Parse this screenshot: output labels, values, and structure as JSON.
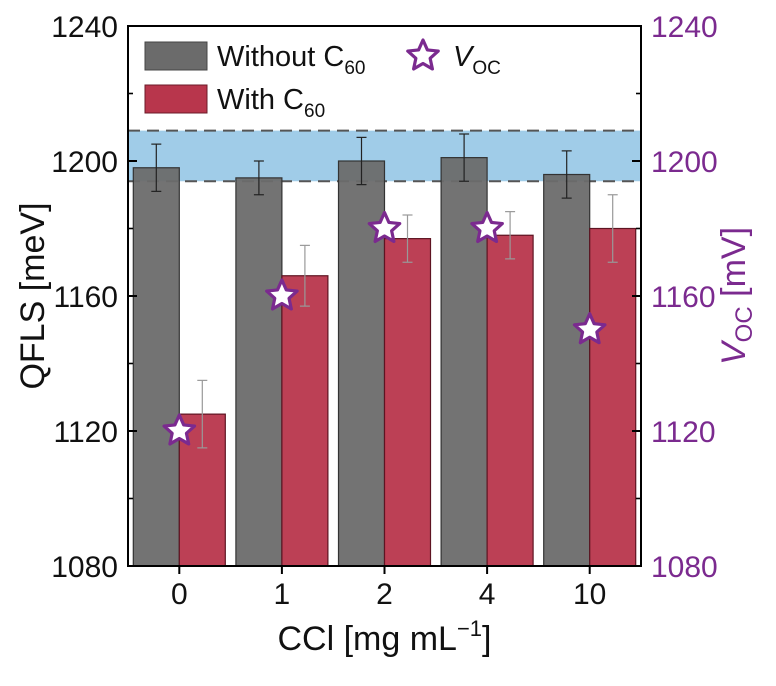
{
  "chart_data": {
    "type": "bar",
    "categories": [
      "0",
      "1",
      "2",
      "4",
      "10"
    ],
    "xlabel_main": "CCl [mg mL",
    "xlabel_sup": "−1",
    "xlabel_end": "]",
    "ylabel": "QFLS [meV]",
    "y2label_italic": "V",
    "y2label_sub": "OC",
    "y2label_end": " [mV]",
    "ylim": [
      1080,
      1240
    ],
    "y2lim": [
      1080,
      1240
    ],
    "yticks": [
      1080,
      1120,
      1160,
      1200,
      1240
    ],
    "y2ticks": [
      1080,
      1120,
      1160,
      1200,
      1240
    ],
    "series": [
      {
        "name": "Without C60",
        "legend_main": "Without C",
        "legend_sub": "60",
        "values": [
          1198,
          1195,
          1200,
          1201,
          1196
        ],
        "errors": [
          7,
          5,
          7,
          7,
          7
        ],
        "color": "#6b6b6b"
      },
      {
        "name": "With C60",
        "legend_main": "With C",
        "legend_sub": "60",
        "values": [
          1125,
          1166,
          1177,
          1178,
          1180
        ],
        "errors": [
          10,
          9,
          7,
          7,
          10
        ],
        "color": "#b8364c"
      }
    ],
    "voc": {
      "name": "VOC",
      "legend_italic": "V",
      "legend_sub": "OC",
      "values": [
        1120,
        1160,
        1180,
        1180,
        1150
      ],
      "color": "#7b2a8f"
    },
    "band": {
      "low": 1194,
      "high": 1209,
      "color": "#8fc3e4"
    },
    "legend_placement": "top-left",
    "grid": false
  }
}
